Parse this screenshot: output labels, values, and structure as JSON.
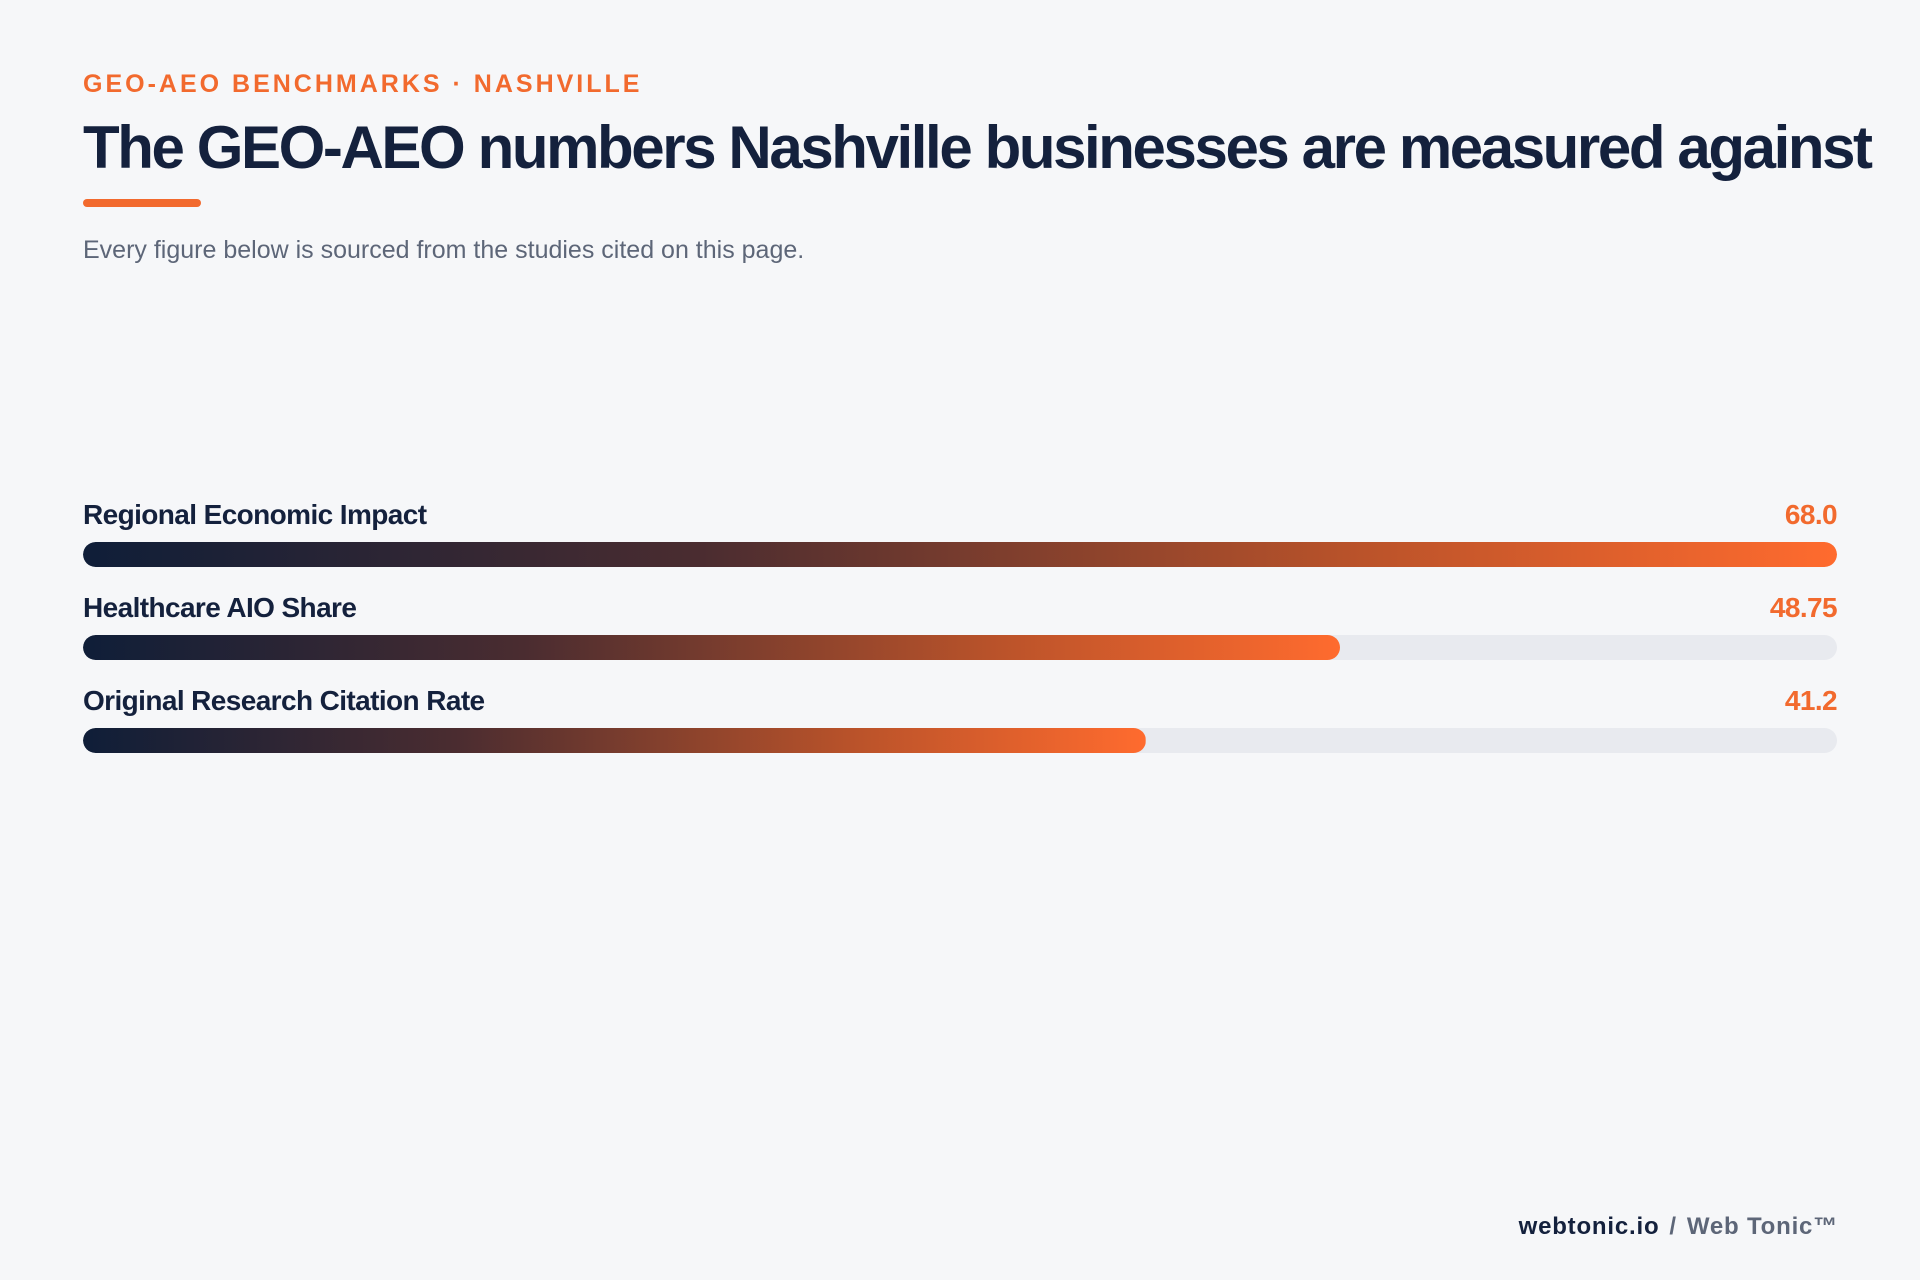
{
  "eyebrow": "GEO-AEO BENCHMARKS · NASHVILLE",
  "title": "The GEO-AEO numbers Nashville businesses are measured against",
  "subtitle": "Every figure below is sourced from the studies cited on this page.",
  "colors": {
    "accent": "#f26a2e",
    "navy": "#14213d",
    "track": "#e8eaef",
    "background": "#f6f7f9"
  },
  "chart_data": {
    "type": "bar",
    "orientation": "horizontal",
    "categories": [
      "Regional Economic Impact",
      "Healthcare AIO Share",
      "Original Research Citation Rate"
    ],
    "values": [
      68.0,
      48.75,
      41.2
    ],
    "value_labels": [
      "68.0",
      "48.75",
      "41.2"
    ],
    "xlim": [
      0,
      68.0
    ],
    "grid": false,
    "legend": "none"
  },
  "footer": {
    "site": "webtonic.io",
    "separator": "/",
    "brand": "Web Tonic™"
  }
}
